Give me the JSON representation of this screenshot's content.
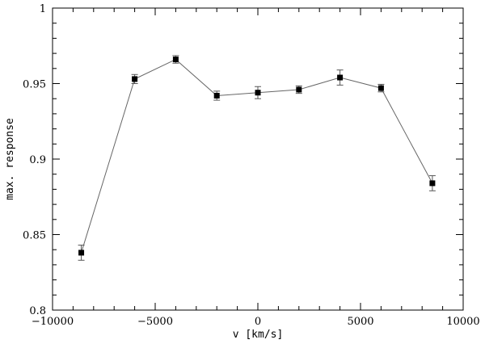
{
  "chart_data": {
    "type": "scatter",
    "title": "",
    "xlabel": "v [km/s]",
    "ylabel": "max. response",
    "xlim": [
      -10000,
      10000
    ],
    "ylim": [
      0.8,
      1.0
    ],
    "x_ticks": [
      -10000,
      -5000,
      0,
      5000,
      10000
    ],
    "x_tick_labels": [
      "−10000",
      "−5000",
      "0",
      "5000",
      "10000"
    ],
    "y_ticks": [
      0.8,
      0.85,
      0.9,
      0.95,
      1.0
    ],
    "y_tick_labels": [
      "0.8",
      "0.85",
      "0.9",
      "0.95",
      "1"
    ],
    "grid": false,
    "marker": "square",
    "connected": true,
    "line_color": "#666666",
    "marker_color": "#000000",
    "points": [
      {
        "x": -8600,
        "y": 0.838,
        "err": 0.005
      },
      {
        "x": -6000,
        "y": 0.953,
        "err": 0.003
      },
      {
        "x": -4000,
        "y": 0.966,
        "err": 0.0025
      },
      {
        "x": -2000,
        "y": 0.942,
        "err": 0.003
      },
      {
        "x": 0,
        "y": 0.944,
        "err": 0.004
      },
      {
        "x": 2000,
        "y": 0.946,
        "err": 0.0025
      },
      {
        "x": 4000,
        "y": 0.954,
        "err": 0.005
      },
      {
        "x": 6000,
        "y": 0.947,
        "err": 0.0025
      },
      {
        "x": 8500,
        "y": 0.884,
        "err": 0.005
      }
    ]
  }
}
